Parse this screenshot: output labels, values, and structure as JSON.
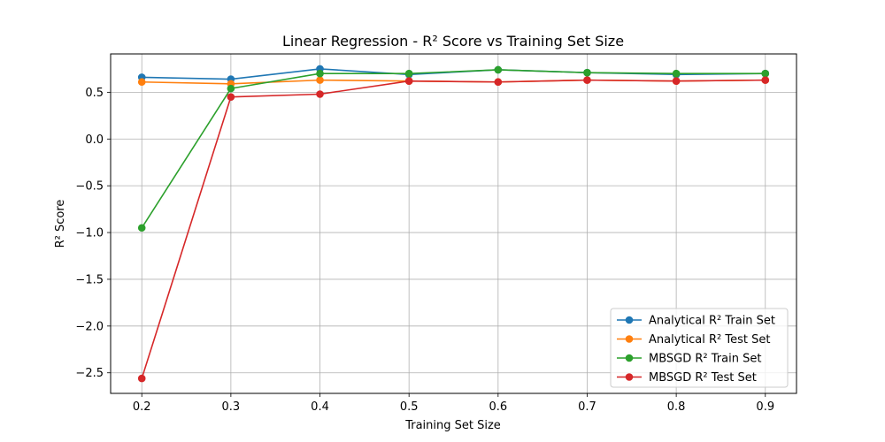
{
  "chart_data": {
    "type": "line",
    "title": "Linear Regression - R² Score vs Training Set Size",
    "xlabel": "Training Set Size",
    "ylabel": "R² Score",
    "x": [
      0.2,
      0.3,
      0.4,
      0.5,
      0.6,
      0.7,
      0.8,
      0.9
    ],
    "x_tick_labels": [
      "0.2",
      "0.3",
      "0.4",
      "0.5",
      "0.6",
      "0.7",
      "0.8",
      "0.9"
    ],
    "y_ticks": [
      0.5,
      0.0,
      -0.5,
      -1.0,
      -1.5,
      -2.0,
      -2.5
    ],
    "y_tick_labels": [
      "0.5",
      "0.0",
      "−0.5",
      "−1.0",
      "−1.5",
      "−2.0",
      "−2.5"
    ],
    "xlim": [
      0.165,
      0.935
    ],
    "ylim": [
      -2.72,
      0.91
    ],
    "grid": true,
    "legend_position": "lower-right",
    "series": [
      {
        "name": "Analytical R² Train Set",
        "color": "#1f77b4",
        "values": [
          0.66,
          0.64,
          0.75,
          0.69,
          0.74,
          0.71,
          0.69,
          0.7
        ]
      },
      {
        "name": "Analytical R² Test Set",
        "color": "#ff7f0e",
        "values": [
          0.61,
          0.59,
          0.63,
          0.62,
          0.61,
          0.63,
          0.62,
          0.63
        ]
      },
      {
        "name": "MBSGD R² Train Set",
        "color": "#2ca02c",
        "values": [
          -0.95,
          0.54,
          0.7,
          0.7,
          0.74,
          0.71,
          0.7,
          0.7
        ]
      },
      {
        "name": "MBSGD R² Test Set",
        "color": "#d62728",
        "values": [
          -2.56,
          0.45,
          0.48,
          0.62,
          0.61,
          0.63,
          0.62,
          0.63
        ]
      }
    ]
  }
}
